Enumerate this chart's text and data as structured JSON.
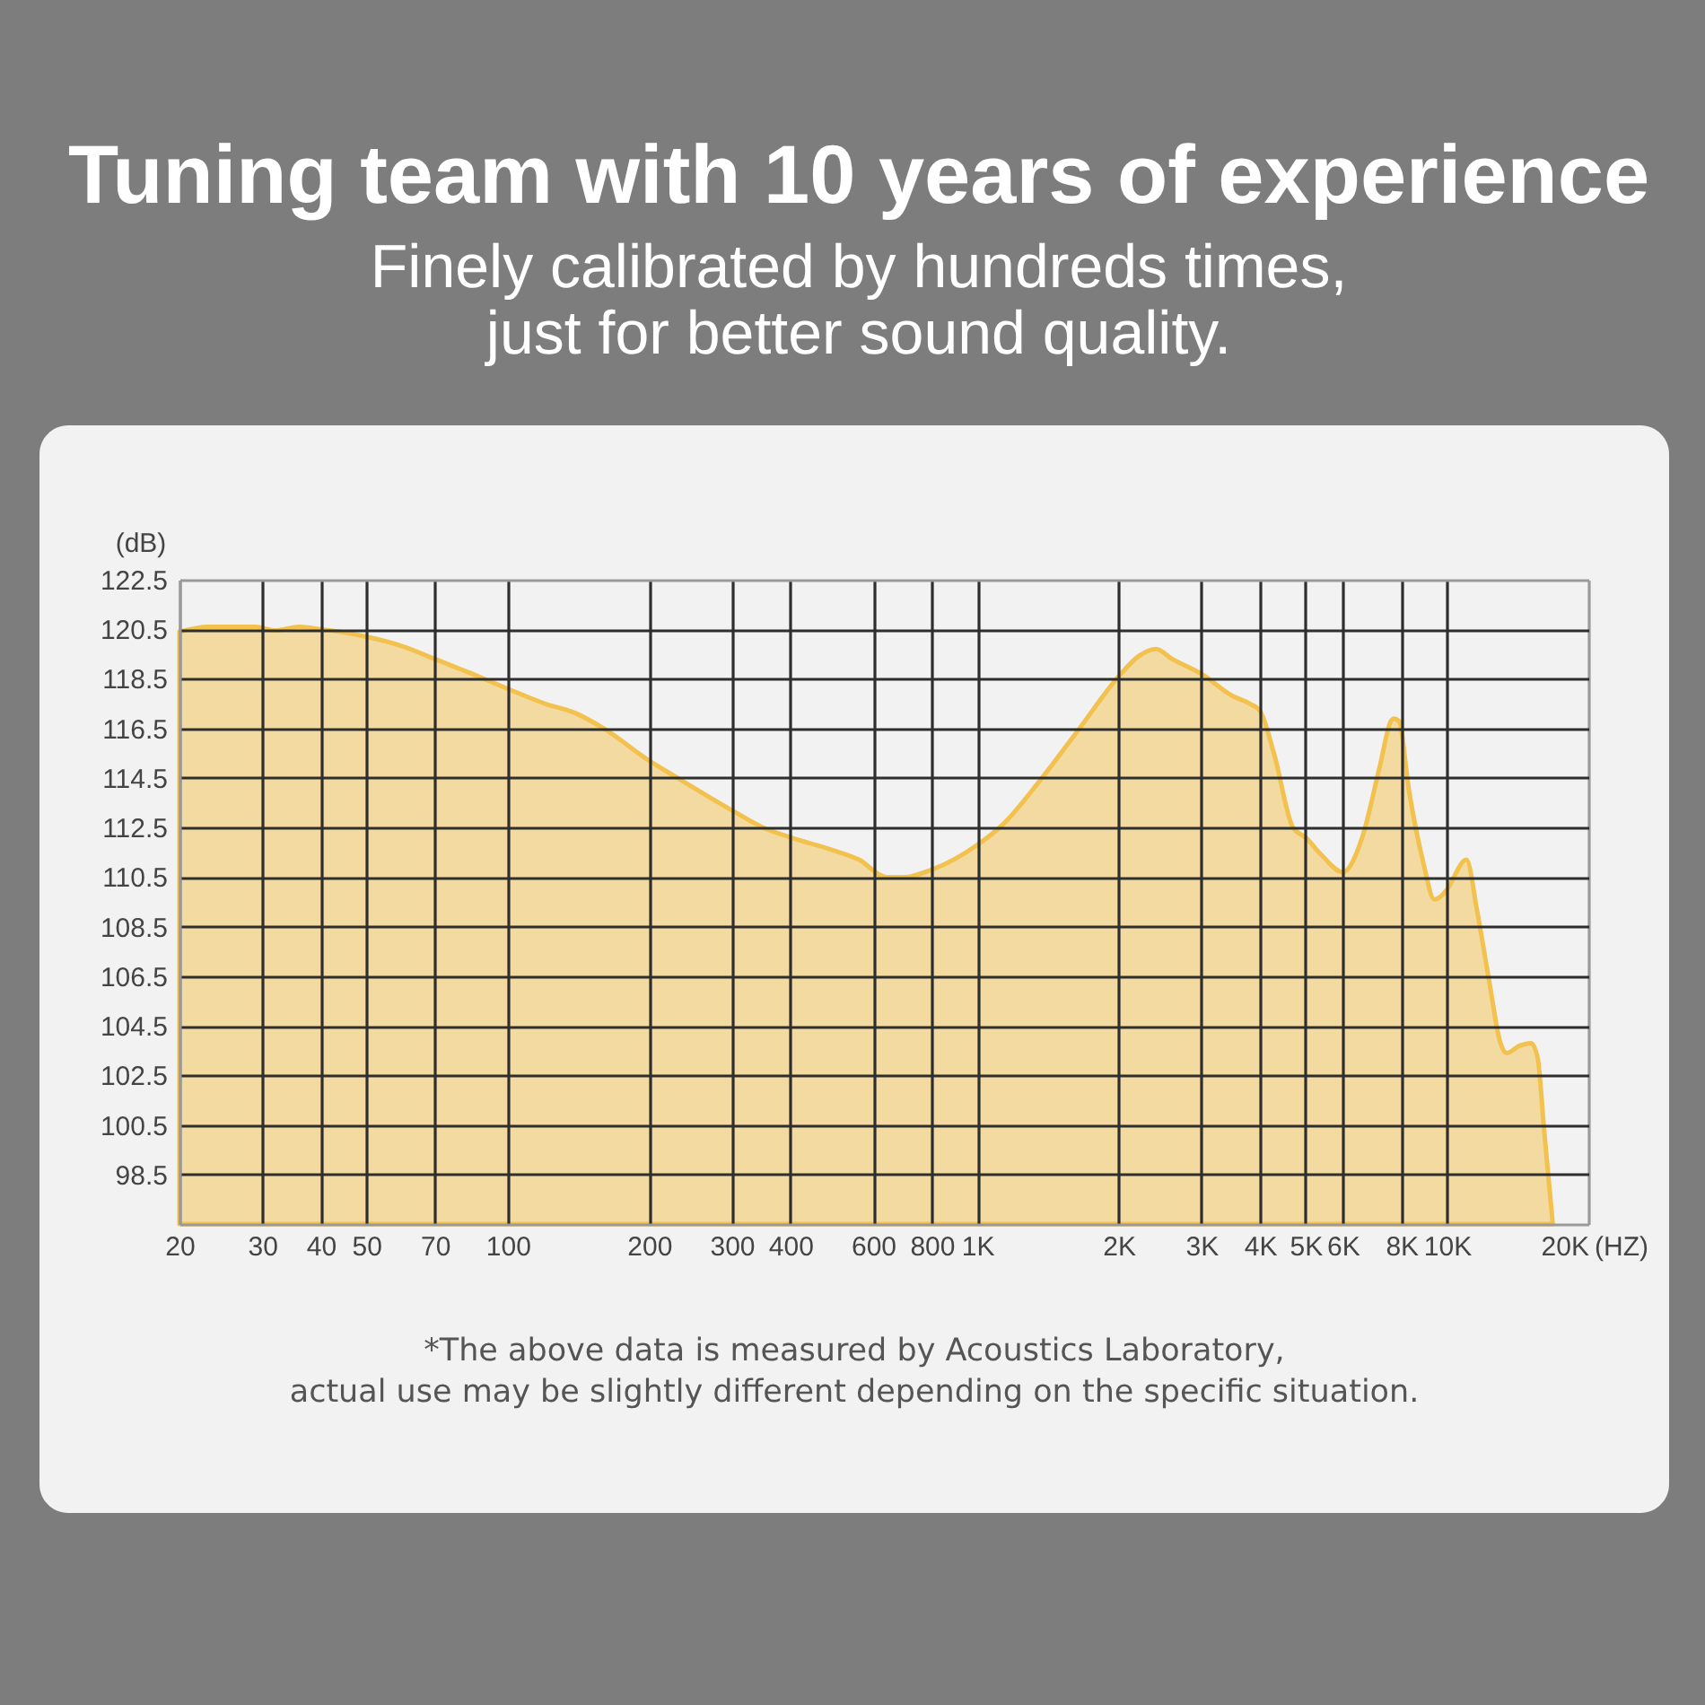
{
  "chart_data": {
    "type": "area",
    "title": "Tuning team with 10 years of experience",
    "subtitle": "Finely calibrated by hundreds times,\njust for better sound quality.",
    "xlabel": "(HZ)",
    "ylabel": "(dB)",
    "annotations": [
      "*The above data is measured by Acoustics Laboratory,\nactual use may be slightly different depending on the specific situation."
    ],
    "log": "x",
    "grid": true,
    "xlim": [
      20,
      20000
    ],
    "ylim": [
      96.5,
      122.5
    ],
    "xticks": [
      20,
      30,
      40,
      50,
      70,
      100,
      200,
      300,
      400,
      600,
      800,
      {
        "value": 1000,
        "label": "1K"
      },
      {
        "value": 2000,
        "label": "2K"
      },
      {
        "value": 3000,
        "label": "3K"
      },
      {
        "value": 4000,
        "label": "4K"
      },
      {
        "value": 5000,
        "label": "5K"
      },
      {
        "value": 6000,
        "label": "6K"
      },
      {
        "value": 8000,
        "label": "8K"
      },
      {
        "value": 10000,
        "label": "10K"
      },
      {
        "value": 20000,
        "label": "20K"
      }
    ],
    "yticks": [
      98.5,
      100.5,
      102.5,
      104.5,
      106.5,
      108.5,
      110.5,
      112.5,
      114.5,
      116.5,
      118.5,
      120.5,
      122.5
    ],
    "color": "#f2c14e",
    "x": [
      20,
      23,
      26,
      29,
      32,
      36,
      40,
      44,
      50,
      60,
      70,
      84,
      100,
      120,
      140,
      160,
      200,
      230,
      300,
      350,
      400,
      490,
      560,
      640,
      700,
      800,
      1000,
      1130,
      1360,
      1650,
      2000,
      2200,
      2400,
      2600,
      3000,
      3500,
      3800,
      4000,
      4280,
      4700,
      5000,
      5400,
      6000,
      6600,
      7200,
      7600,
      7700,
      7900,
      8300,
      8900,
      9400,
      9800,
      10000,
      11000,
      11600,
      12300,
      13000,
      13400,
      14300,
      15100,
      15600,
      16100,
      16800
    ],
    "values": [
      120.4,
      120.6,
      120.6,
      120.6,
      120.45,
      120.6,
      120.5,
      120.4,
      120.2,
      119.8,
      119.3,
      118.7,
      118.1,
      117.5,
      117.1,
      116.5,
      115.2,
      114.5,
      113.2,
      112.5,
      112.1,
      111.6,
      111.2,
      110.5,
      110.5,
      110.8,
      111.8,
      112.6,
      114.4,
      116.5,
      118.6,
      119.4,
      119.7,
      119.3,
      118.7,
      117.8,
      117.5,
      117.2,
      115.5,
      112.5,
      112.1,
      111.4,
      110.7,
      112.1,
      115.0,
      116.8,
      116.9,
      116.8,
      114.0,
      111.1,
      109.6,
      109.8,
      110.0,
      111.2,
      109.1,
      106.3,
      103.8,
      103.4,
      103.7,
      103.8,
      103.2,
      100.3,
      96.5
    ]
  }
}
